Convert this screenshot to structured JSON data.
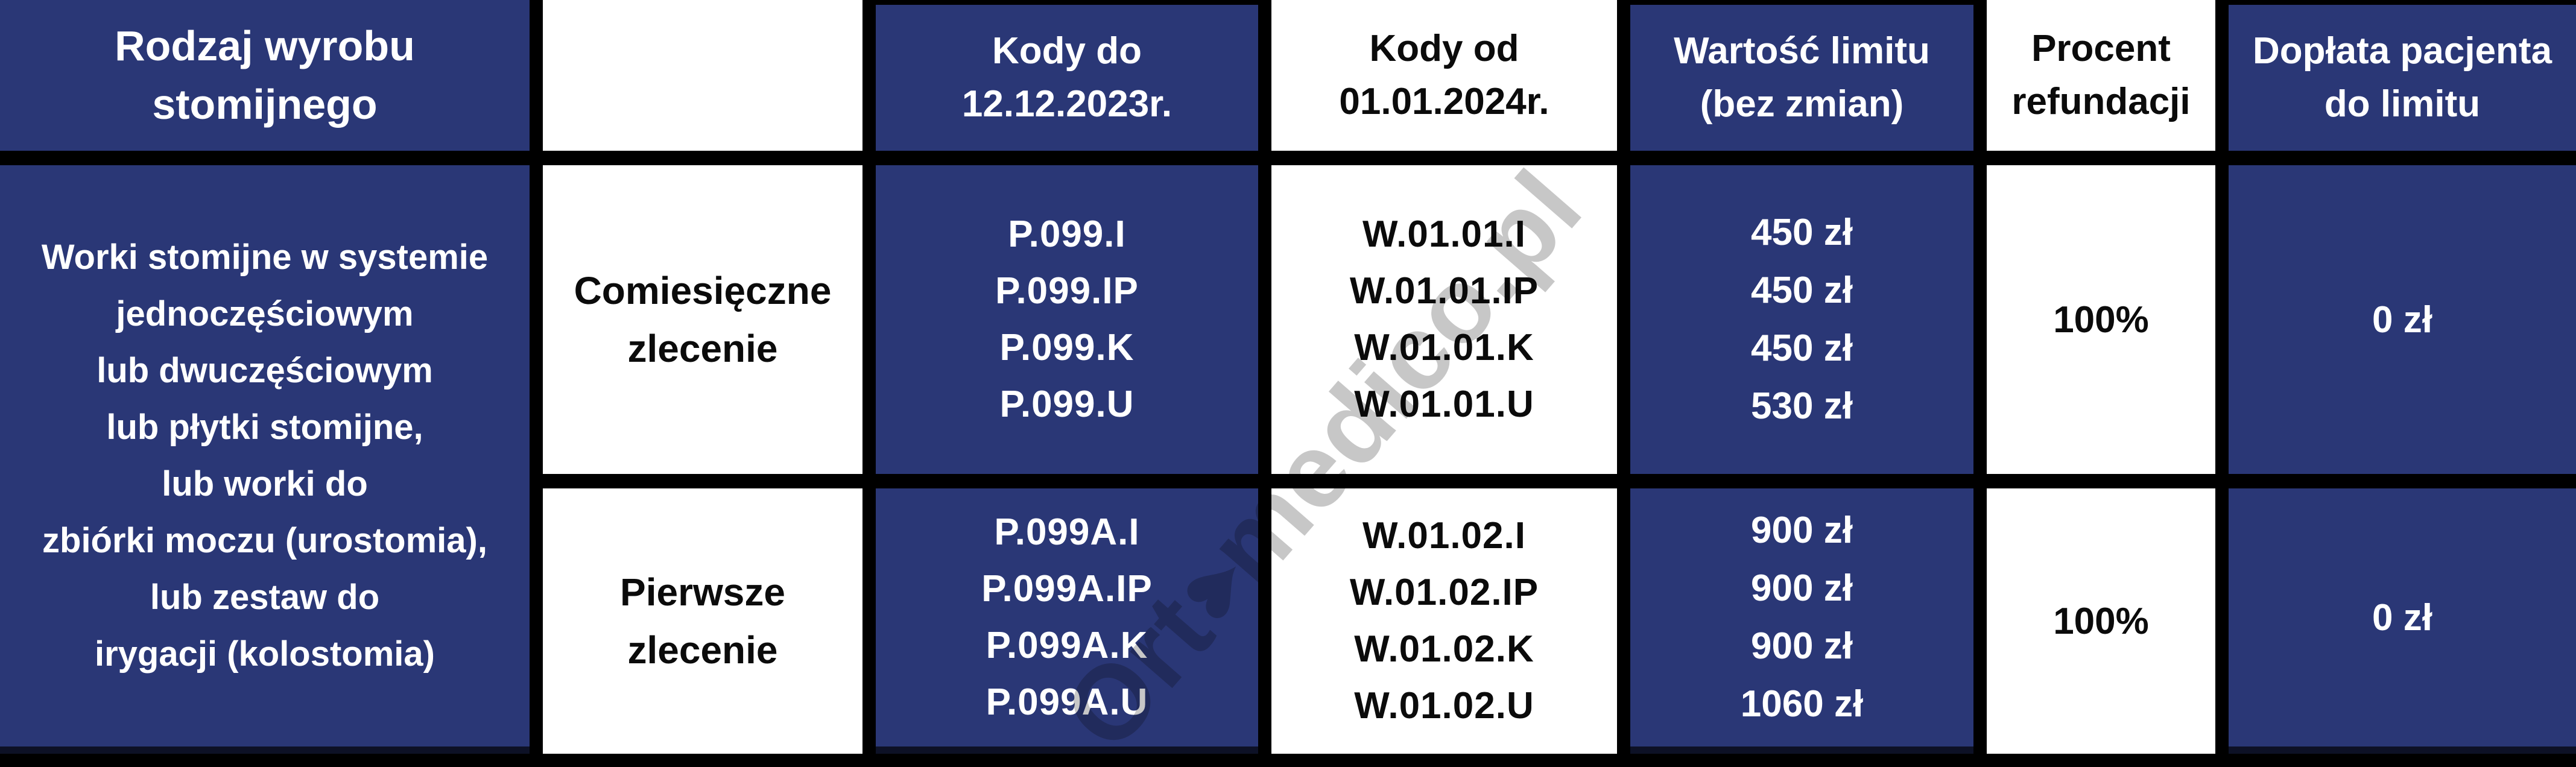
{
  "colors": {
    "cell_blue": "#2A3776",
    "border_black": "#000000",
    "text_on_blue": "#FFFFFF",
    "text_on_white": "#0B0B0B",
    "watermark_gray": "#8F8F8F"
  },
  "header": {
    "col1": "Rodzaj wyrobu\nstomijnego",
    "col2": "",
    "col3": "Kody do\n12.12.2023r.",
    "col4": "Kody od\n01.01.2024r.",
    "col5": "Wartość limitu\n(bez zmian)",
    "col6": "Procent\nrefundacji",
    "col7": "Dopłata pacjenta\ndo limitu"
  },
  "product": "Worki stomijne w systemie\njednoczęściowym\nlub dwuczęściowym\nlub płytki stomijne,\nlub worki do\nzbiórki moczu (urostomia),\nlub zestaw do\nirygacji (kolostomia)",
  "rows": [
    {
      "order_type": "Comiesięczne\nzlecenie",
      "codes_old": "P.099.I\nP.099.IP\nP.099.K\nP.099.U",
      "codes_new": "W.01.01.I\nW.01.01.IP\nW.01.01.K\nW.01.01.U",
      "limit": "450 zł\n450 zł\n450 zł\n530 zł",
      "refund": "100%",
      "copay": "0 zł"
    },
    {
      "order_type": "Pierwsze\nzlecenie",
      "codes_old": "P.099A.I\nP.099A.IP\nP.099A.K\nP.099A.U",
      "codes_new": "W.01.02.I\nW.01.02.IP\nW.01.02.K\nW.01.02.U",
      "limit": "900 zł\n900 zł\n900 zł\n1060 zł",
      "refund": "100%",
      "copay": "0 zł"
    }
  ],
  "watermark": {
    "prefix": "Ort",
    "heart": "♥",
    "suffix": "medico.pl"
  }
}
